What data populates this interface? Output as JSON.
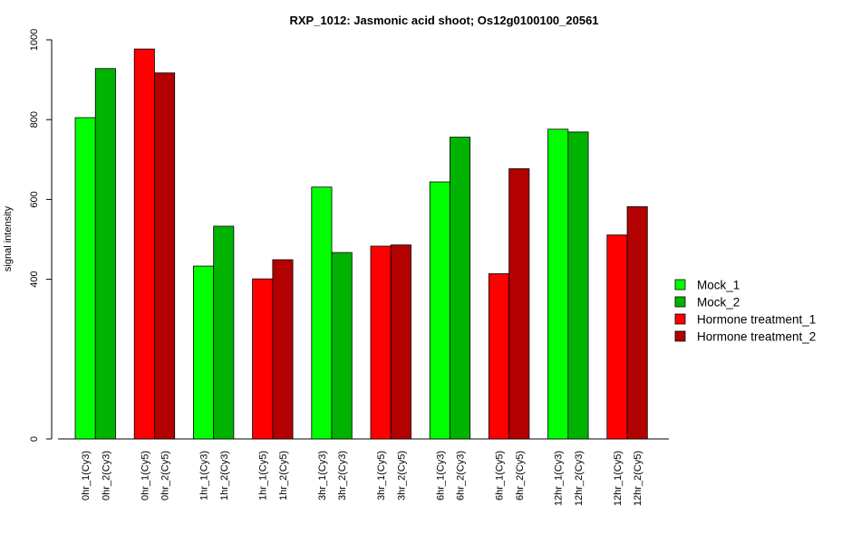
{
  "chart_data": {
    "type": "bar",
    "title": "RXP_1012: Jasmonic acid shoot; Os12g0100100_20561",
    "xlabel": "",
    "ylabel": "signal intensity",
    "ylim": [
      0,
      1000
    ],
    "yticks": [
      0,
      400,
      600,
      800,
      1000
    ],
    "grid": false,
    "legend_position": "right",
    "series": [
      {
        "name": "Mock_1",
        "color": "#00ff00"
      },
      {
        "name": "Mock_2",
        "color": "#00b300"
      },
      {
        "name": "Hormone treatment_1",
        "color": "#ff0000"
      },
      {
        "name": "Hormone treatment_2",
        "color": "#b30000"
      }
    ],
    "groups": [
      {
        "bars": [
          {
            "label": "0hr_1(Cy3)",
            "value": 805,
            "series": 0
          },
          {
            "label": "0hr_2(Cy3)",
            "value": 928,
            "series": 1
          }
        ]
      },
      {
        "bars": [
          {
            "label": "0hr_1(Cy5)",
            "value": 977,
            "series": 2
          },
          {
            "label": "0hr_2(Cy5)",
            "value": 917,
            "series": 3
          }
        ]
      },
      {
        "bars": [
          {
            "label": "1hr_1(Cy3)",
            "value": 433,
            "series": 0
          },
          {
            "label": "1hr_2(Cy3)",
            "value": 533,
            "series": 1
          }
        ]
      },
      {
        "bars": [
          {
            "label": "1hr_1(Cy5)",
            "value": 401,
            "series": 2
          },
          {
            "label": "1hr_2(Cy5)",
            "value": 449,
            "series": 3
          }
        ]
      },
      {
        "bars": [
          {
            "label": "3hr_1(Cy3)",
            "value": 631,
            "series": 0
          },
          {
            "label": "3hr_2(Cy3)",
            "value": 467,
            "series": 1
          }
        ]
      },
      {
        "bars": [
          {
            "label": "3hr_1(Cy5)",
            "value": 483,
            "series": 2
          },
          {
            "label": "3hr_2(Cy5)",
            "value": 486,
            "series": 3
          }
        ]
      },
      {
        "bars": [
          {
            "label": "6hr_1(Cy3)",
            "value": 644,
            "series": 0
          },
          {
            "label": "6hr_2(Cy3)",
            "value": 756,
            "series": 1
          }
        ]
      },
      {
        "bars": [
          {
            "label": "6hr_1(Cy5)",
            "value": 414,
            "series": 2
          },
          {
            "label": "6hr_2(Cy5)",
            "value": 677,
            "series": 3
          }
        ]
      },
      {
        "bars": [
          {
            "label": "12hr_1(Cy3)",
            "value": 776,
            "series": 0
          },
          {
            "label": "12hr_2(Cy3)",
            "value": 769,
            "series": 1
          }
        ]
      },
      {
        "bars": [
          {
            "label": "12hr_1(Cy5)",
            "value": 511,
            "series": 2
          },
          {
            "label": "12hr_2(Cy5)",
            "value": 582,
            "series": 3
          }
        ]
      }
    ]
  }
}
